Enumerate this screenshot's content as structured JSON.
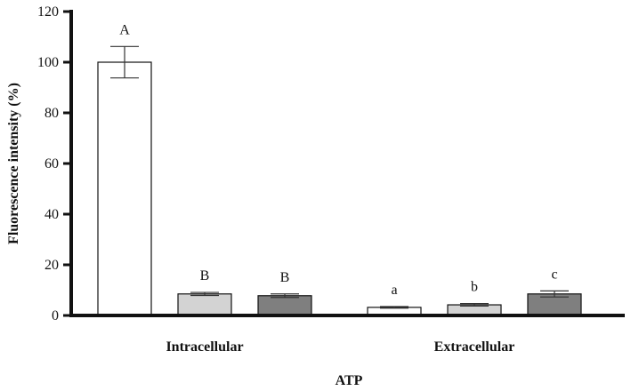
{
  "chart_data": {
    "type": "bar",
    "xlabel": "ATP",
    "ylabel": "Fluorescence intensity (%)",
    "ylim": [
      0,
      120
    ],
    "yticks": [
      "0",
      "20",
      "40",
      "60",
      "80",
      "100",
      "120"
    ],
    "grid": false,
    "legend": "none",
    "groups": [
      {
        "label": "Intracellular",
        "bars": [
          {
            "value": 100,
            "error": 6.2,
            "color": "#ffffff",
            "sig": "A"
          },
          {
            "value": 8.5,
            "error": 0.6,
            "color": "#d3d3d3",
            "sig": "B"
          },
          {
            "value": 7.8,
            "error": 0.7,
            "color": "#7f7f7f",
            "sig": "B"
          }
        ]
      },
      {
        "label": "Extracellular",
        "bars": [
          {
            "value": 3.2,
            "error": 0.3,
            "color": "#ffffff",
            "sig": "a"
          },
          {
            "value": 4.2,
            "error": 0.5,
            "color": "#d3d3d3",
            "sig": "b"
          },
          {
            "value": 8.5,
            "error": 1.2,
            "color": "#7f7f7f",
            "sig": "c"
          }
        ]
      }
    ]
  }
}
